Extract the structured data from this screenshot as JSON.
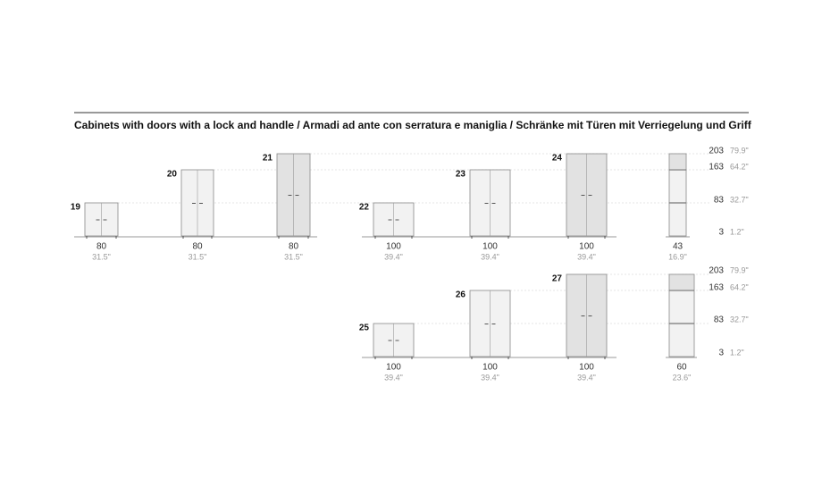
{
  "title": "Cabinets with doors with a lock and handle / Armadi ad ante con serratura e maniglia / Schränke mit Türen mit Verriegelung und Griff",
  "rows": [
    {
      "cabinets": [
        {
          "number": 19,
          "width_cm": 80,
          "width_in": "31.5\""
        },
        {
          "number": 20,
          "width_cm": 80,
          "width_in": "31.5\""
        },
        {
          "number": 21,
          "width_cm": 80,
          "width_in": "31.5\""
        },
        {
          "number": 22,
          "width_cm": 100,
          "width_in": "39.4\""
        },
        {
          "number": 23,
          "width_cm": 100,
          "width_in": "39.4\""
        },
        {
          "number": 24,
          "width_cm": 100,
          "width_in": "39.4\""
        },
        {
          "width_cm": 43,
          "width_in": "16.9\""
        }
      ],
      "scale": [
        {
          "cm": 203,
          "in": "79.9\""
        },
        {
          "cm": 163,
          "in": "64.2\""
        },
        {
          "cm": 83,
          "in": "32.7\""
        },
        {
          "cm": 3,
          "in": "1.2\""
        }
      ]
    },
    {
      "cabinets": [
        {
          "number": 25,
          "width_cm": 100,
          "width_in": "39.4\""
        },
        {
          "number": 26,
          "width_cm": 100,
          "width_in": "39.4\""
        },
        {
          "number": 27,
          "width_cm": 100,
          "width_in": "39.4\""
        },
        {
          "width_cm": 60,
          "width_in": "23.6\""
        }
      ],
      "scale": [
        {
          "cm": 203,
          "in": "79.9\""
        },
        {
          "cm": 163,
          "in": "64.2\""
        },
        {
          "cm": 83,
          "in": "32.7\""
        },
        {
          "cm": 3,
          "in": "1.2\""
        }
      ]
    }
  ]
}
